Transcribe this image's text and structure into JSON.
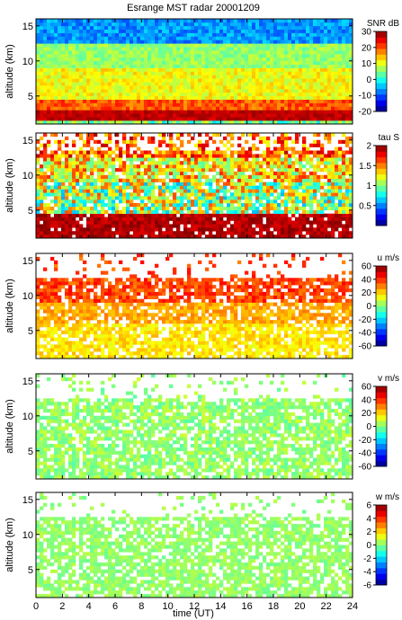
{
  "chart_data": {
    "type": "heatmap",
    "title": "Esrange MST radar 20001209",
    "xlabel": "time (UT)",
    "xlim": [
      0,
      24
    ],
    "xticks": [
      0,
      2,
      4,
      6,
      8,
      10,
      12,
      14,
      16,
      18,
      20,
      22,
      24
    ],
    "panels": [
      {
        "ylabel": "altitude (km)",
        "ylim": [
          1,
          16
        ],
        "yticks": [
          5,
          10,
          15
        ],
        "colorbar": {
          "label": "SNR dB",
          "min": -20,
          "max": 30,
          "ticks": [
            -20,
            -10,
            0,
            10,
            20,
            30
          ]
        }
      },
      {
        "ylabel": "altitude (km)",
        "ylim": [
          1,
          16
        ],
        "yticks": [
          5,
          10,
          15
        ],
        "colorbar": {
          "label": "tau S",
          "min": 0,
          "max": 2,
          "ticks": [
            0.5,
            1,
            1.5,
            2
          ]
        }
      },
      {
        "ylabel": "altitude (km)",
        "ylim": [
          1,
          16
        ],
        "yticks": [
          5,
          10,
          15
        ],
        "colorbar": {
          "label": "u m/s",
          "min": -60,
          "max": 60,
          "ticks": [
            -60,
            -40,
            -20,
            0,
            20,
            40,
            60
          ]
        }
      },
      {
        "ylabel": "altitude (km)",
        "ylim": [
          1,
          16
        ],
        "yticks": [
          5,
          10,
          15
        ],
        "colorbar": {
          "label": "v m/s",
          "min": -60,
          "max": 60,
          "ticks": [
            -60,
            -40,
            -20,
            0,
            20,
            40,
            60
          ]
        }
      },
      {
        "ylabel": "altitude (km)",
        "ylim": [
          1,
          16
        ],
        "yticks": [
          5,
          10,
          15
        ],
        "colorbar": {
          "label": "w m/s",
          "min": -6,
          "max": 6,
          "ticks": [
            -6,
            -4,
            -2,
            0,
            2,
            4,
            6
          ]
        }
      }
    ]
  }
}
